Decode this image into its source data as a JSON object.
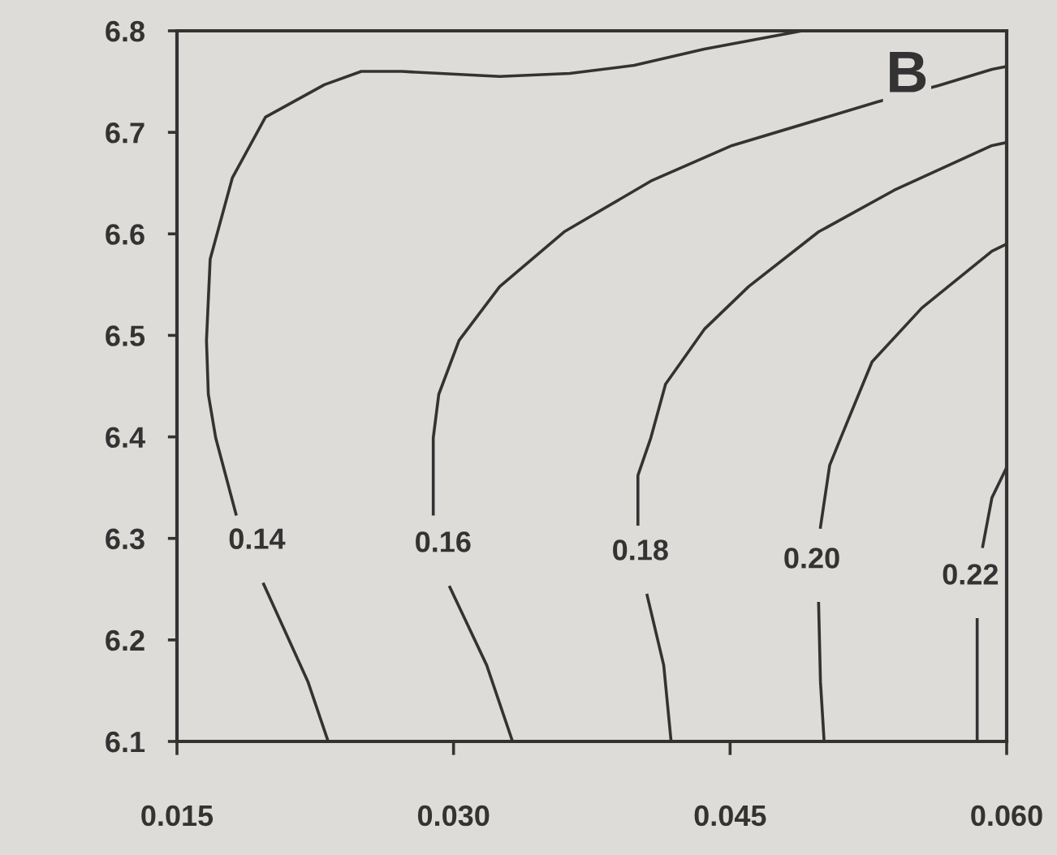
{
  "chart_data": {
    "type": "line",
    "xlim": [
      0.015,
      0.06
    ],
    "ylim": [
      6.1,
      6.8
    ],
    "xticks": [
      {
        "value": 0.015,
        "label": "0.015"
      },
      {
        "value": 0.03,
        "label": "0.030"
      },
      {
        "value": 0.045,
        "label": "0.045"
      },
      {
        "value": 0.06,
        "label": "0.060"
      }
    ],
    "yticks": [
      6.1,
      6.2,
      6.3,
      6.4,
      6.5,
      6.6,
      6.7,
      6.8
    ],
    "grid": false,
    "legend": false,
    "marker": "none",
    "line_style": "solid",
    "annotations": [
      "B"
    ],
    "series": [
      {
        "color": "#333333",
        "x": [
          0.0489,
          0.0436,
          0.0398,
          0.0363,
          0.0325,
          0.0272,
          0.025,
          0.023,
          0.0198,
          0.018,
          0.0168,
          0.0166,
          0.0167,
          0.0171,
          0.0182
        ],
        "values": [
          6.8,
          6.782,
          6.766,
          6.758,
          6.755,
          6.76,
          6.76,
          6.747,
          6.715,
          6.655,
          6.575,
          6.495,
          6.442,
          6.399,
          6.324
        ]
      },
      {
        "name": "0.14",
        "color": "#333333",
        "x": [
          0.0197,
          0.0221,
          0.0232
        ],
        "values": [
          6.255,
          6.159,
          6.1
        ]
      },
      {
        "color": "#333333",
        "x": [
          0.06,
          0.0592,
          0.0563,
          0.053,
          0.0451,
          0.0407,
          0.036,
          0.0325,
          0.0303,
          0.0292,
          0.0289,
          0.0289
        ],
        "values": [
          6.765,
          6.762,
          6.746,
          6.73,
          6.687,
          6.652,
          6.602,
          6.548,
          6.495,
          6.442,
          6.399,
          6.324
        ]
      },
      {
        "name": "0.16",
        "color": "#333333",
        "x": [
          0.0298,
          0.0318,
          0.0332
        ],
        "values": [
          6.252,
          6.175,
          6.1
        ]
      },
      {
        "color": "#333333",
        "x": [
          0.06,
          0.0592,
          0.0539,
          0.0498,
          0.046,
          0.0436,
          0.0415,
          0.0407,
          0.04,
          0.04
        ],
        "values": [
          6.69,
          6.687,
          6.643,
          6.602,
          6.548,
          6.506,
          6.452,
          6.399,
          6.362,
          6.314
        ]
      },
      {
        "name": "0.18",
        "color": "#333333",
        "x": [
          0.0405,
          0.0414,
          0.0418
        ],
        "values": [
          6.244,
          6.175,
          6.1
        ]
      },
      {
        "color": "#333333",
        "x": [
          0.06,
          0.0592,
          0.0554,
          0.0527,
          0.051,
          0.0504,
          0.0499
        ],
        "values": [
          6.59,
          6.583,
          6.527,
          6.474,
          6.399,
          6.372,
          6.311
        ]
      },
      {
        "name": "0.20",
        "color": "#333333",
        "x": [
          0.0498,
          0.0499,
          0.0501
        ],
        "values": [
          6.236,
          6.159,
          6.1
        ]
      },
      {
        "color": "#333333",
        "x": [
          0.06,
          0.0592,
          0.0587
        ],
        "values": [
          6.37,
          6.34,
          6.292
        ]
      },
      {
        "name": "0.22",
        "color": "#333333",
        "x": [
          0.0584,
          0.0584
        ],
        "values": [
          6.22,
          6.1
        ]
      }
    ]
  }
}
